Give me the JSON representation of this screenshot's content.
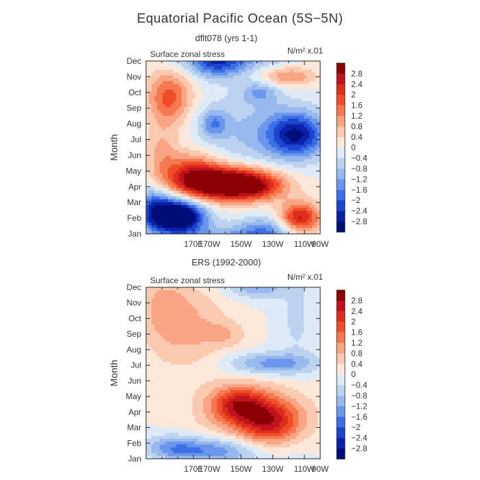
{
  "figure": {
    "title": "Equatorial Pacific Ocean (5S−5N)"
  },
  "colorbar": {
    "levels": [
      "2.8",
      "2.4",
      "2",
      "1.6",
      "1.2",
      "0.8",
      "0.4",
      "0",
      "−0.4",
      "−0.8",
      "−1.2",
      "−1.6",
      "−2",
      "−2.4",
      "−2.8"
    ],
    "colors": [
      "#8b0000",
      "#c1121f",
      "#de2d1a",
      "#f04d2a",
      "#f5784f",
      "#f9a584",
      "#fbc9b1",
      "#fde7d9",
      "#ddeaf7",
      "#bcd3f0",
      "#97b9ed",
      "#6a96ec",
      "#3d6fe6",
      "#1c45d0",
      "#0b22a8",
      "#000c7a"
    ]
  },
  "chart_data": [
    {
      "type": "heatmap",
      "title": "dflt078 (yrs 1-1)",
      "subtitle": "Surface zonal stress",
      "units": "N/m² x.01",
      "xlabel": "",
      "ylabel": "Month",
      "x_ticks": [
        "170E",
        "170W",
        "150W",
        "130W",
        "110W",
        "90W"
      ],
      "y_ticks": [
        "Jan",
        "Feb",
        "Mar",
        "Apr",
        "May",
        "Jun",
        "Jul",
        "Aug",
        "Sep",
        "Oct",
        "Nov",
        "Dec"
      ],
      "xlim": [
        160,
        270
      ],
      "ylim": [
        1,
        12
      ],
      "features": [
        {
          "lon": 180,
          "month": 2.1,
          "amplitude": -4.2,
          "width_lon": 12,
          "width_month": 0.8
        },
        {
          "lon": 165,
          "month": 2.7,
          "amplitude": -1.6,
          "width_lon": 8,
          "width_month": 1.0
        },
        {
          "lon": 235,
          "month": 1.0,
          "amplitude": -1.8,
          "width_lon": 14,
          "width_month": 0.7
        },
        {
          "lon": 257,
          "month": 2.0,
          "amplitude": 2.6,
          "width_lon": 9,
          "width_month": 0.7
        },
        {
          "lon": 212,
          "month": 4.2,
          "amplitude": 4.0,
          "width_lon": 20,
          "width_month": 0.75
        },
        {
          "lon": 190,
          "month": 4.8,
          "amplitude": 1.8,
          "width_lon": 12,
          "width_month": 1.0
        },
        {
          "lon": 230,
          "month": 4.0,
          "amplitude": 1.0,
          "width_lon": 14,
          "width_month": 0.6
        },
        {
          "lon": 175,
          "month": 9.7,
          "amplitude": 1.8,
          "width_lon": 10,
          "width_month": 1.2
        },
        {
          "lon": 170,
          "month": 6.0,
          "amplitude": 0.9,
          "width_lon": 8,
          "width_month": 1.5
        },
        {
          "lon": 255,
          "month": 7.3,
          "amplitude": -2.6,
          "width_lon": 13,
          "width_month": 1.0
        },
        {
          "lon": 203,
          "month": 8.0,
          "amplitude": -1.2,
          "width_lon": 6,
          "width_month": 0.6
        },
        {
          "lon": 205,
          "month": 12.0,
          "amplitude": -2.4,
          "width_lon": 14,
          "width_month": 0.7
        },
        {
          "lon": 250,
          "month": 11.0,
          "amplitude": 1.3,
          "width_lon": 12,
          "width_month": 0.45
        },
        {
          "lon": 232,
          "month": 10.0,
          "amplitude": -1.0,
          "width_lon": 8,
          "width_month": 0.5
        },
        {
          "lon": 225,
          "month": 7.5,
          "amplitude": -0.8,
          "width_lon": 25,
          "width_month": 2.0
        }
      ]
    },
    {
      "type": "heatmap",
      "title": "ERS (1992-2000)",
      "subtitle": "Surface zonal stress",
      "units": "N/m² x.01",
      "xlabel": "",
      "ylabel": "Month",
      "x_ticks": [
        "170E",
        "170W",
        "150W",
        "130W",
        "110W",
        "90W"
      ],
      "y_ticks": [
        "Jan",
        "Feb",
        "Mar",
        "Apr",
        "May",
        "Jun",
        "Jul",
        "Aug",
        "Sep",
        "Oct",
        "Nov",
        "Dec"
      ],
      "xlim": [
        160,
        270
      ],
      "ylim": [
        1,
        12
      ],
      "features": [
        {
          "lon": 200,
          "month": 1.5,
          "amplitude": -1.6,
          "width_lon": 22,
          "width_month": 0.6
        },
        {
          "lon": 175,
          "month": 1.7,
          "amplitude": -1.0,
          "width_lon": 12,
          "width_month": 0.6
        },
        {
          "lon": 238,
          "month": 3.3,
          "amplitude": 1.9,
          "width_lon": 14,
          "width_month": 1.0
        },
        {
          "lon": 218,
          "month": 4.5,
          "amplitude": 1.8,
          "width_lon": 12,
          "width_month": 0.8
        },
        {
          "lon": 228,
          "month": 4.0,
          "amplitude": 1.0,
          "width_lon": 25,
          "width_month": 1.3
        },
        {
          "lon": 240,
          "month": 7.1,
          "amplitude": -1.4,
          "width_lon": 20,
          "width_month": 0.5
        },
        {
          "lon": 230,
          "month": 12.0,
          "amplitude": -1.1,
          "width_lon": 14,
          "width_month": 0.5
        },
        {
          "lon": 185,
          "month": 9.5,
          "amplitude": 0.9,
          "width_lon": 18,
          "width_month": 2.0
        },
        {
          "lon": 170,
          "month": 11.0,
          "amplitude": 0.6,
          "width_lon": 10,
          "width_month": 1.5
        },
        {
          "lon": 255,
          "month": 10.0,
          "amplitude": -0.5,
          "width_lon": 8,
          "width_month": 2.0
        },
        {
          "lon": 210,
          "month": 9.0,
          "amplitude": 0.6,
          "width_lon": 10,
          "width_month": 0.6
        }
      ]
    }
  ]
}
